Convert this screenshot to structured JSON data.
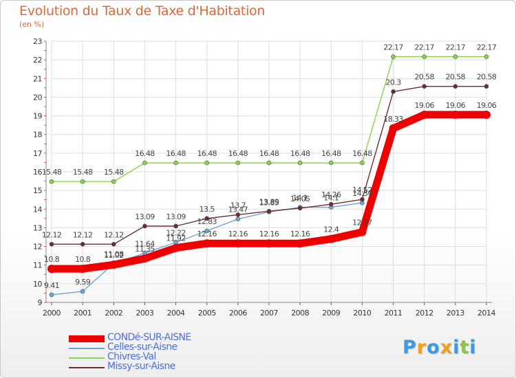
{
  "title": "Evolution du Taux de Taxe d'Habitation",
  "unit": "(en %)",
  "logo": {
    "text": "Proxiti",
    "letters": [
      {
        "ch": "P",
        "color": "#3a9be0"
      },
      {
        "ch": "r",
        "color": "#f2a11e"
      },
      {
        "ch": "o",
        "color": "#3a9be0"
      },
      {
        "ch": "x",
        "color": "#f2a11e"
      },
      {
        "ch": "i",
        "color": "#3a9be0"
      },
      {
        "ch": "t",
        "color": "#8cc63f"
      },
      {
        "ch": "i",
        "color": "#3a9be0"
      }
    ]
  },
  "chart_data": {
    "type": "line",
    "title": "Evolution du Taux de Taxe d'Habitation",
    "ylabel": "(en %)",
    "xlabel": "",
    "x": [
      2000,
      2001,
      2002,
      2003,
      2004,
      2005,
      2006,
      2007,
      2008,
      2009,
      2010,
      2011,
      2012,
      2013,
      2014
    ],
    "ylim": [
      9,
      23
    ],
    "yticks": [
      9,
      10,
      11,
      12,
      13,
      14,
      15,
      16,
      17,
      18,
      19,
      20,
      21,
      22,
      23
    ],
    "grid": true,
    "legend_position": "bottom-left",
    "series": [
      {
        "name": "CONDé-SUR-AISNE",
        "color": "#ee0000",
        "values": [
          10.8,
          10.8,
          11.02,
          11.35,
          11.92,
          12.16,
          12.16,
          12.16,
          12.16,
          12.4,
          12.77,
          18.33,
          19.06,
          19.06,
          19.06
        ],
        "labels": [
          "10.8",
          "10.8",
          "11.02",
          "11.35",
          "11.92",
          "12.16",
          "12.16",
          "12.16",
          "12.16",
          "12.4",
          "12.77",
          "18.33",
          "19.06",
          "19.06",
          "19.06"
        ]
      },
      {
        "name": "Celles-sur-Aisne",
        "color": "#6aa6d8",
        "values": [
          9.41,
          9.59,
          11.08,
          11.64,
          12.22,
          12.83,
          13.47,
          13.85,
          14.1,
          14.1,
          14.34,
          null,
          null,
          null,
          null
        ],
        "labels": [
          "9.41",
          "9.59",
          "11.08",
          "11.64",
          "12.22",
          "12.83",
          "13.47",
          "13.85",
          "14.1",
          "14.1",
          "14.34",
          "",
          "",
          "",
          ""
        ]
      },
      {
        "name": "Chivres-Val",
        "color": "#8cd24a",
        "values": [
          15.48,
          15.48,
          15.48,
          16.48,
          16.48,
          16.48,
          16.48,
          16.48,
          16.48,
          16.48,
          16.48,
          22.17,
          22.17,
          22.17,
          22.17
        ],
        "labels": [
          "15.48",
          "15.48",
          "15.48",
          "16.48",
          "16.48",
          "16.48",
          "16.48",
          "16.48",
          "16.48",
          "16.48",
          "16.48",
          "22.17",
          "22.17",
          "22.17",
          "22.17"
        ]
      },
      {
        "name": "Missy-sur-Aisne",
        "color": "#6b2b33",
        "values": [
          12.12,
          12.12,
          12.12,
          13.09,
          13.09,
          13.5,
          13.7,
          13.89,
          14.05,
          14.26,
          14.52,
          20.3,
          20.58,
          20.58,
          20.58
        ],
        "labels": [
          "12.12",
          "12.12",
          "12.12",
          "13.09",
          "13.09",
          "13.5",
          "13.7",
          "13.89",
          "14.05",
          "14.26",
          "14.52",
          "20.3",
          "20.58",
          "20.58",
          "20.58"
        ]
      }
    ]
  }
}
